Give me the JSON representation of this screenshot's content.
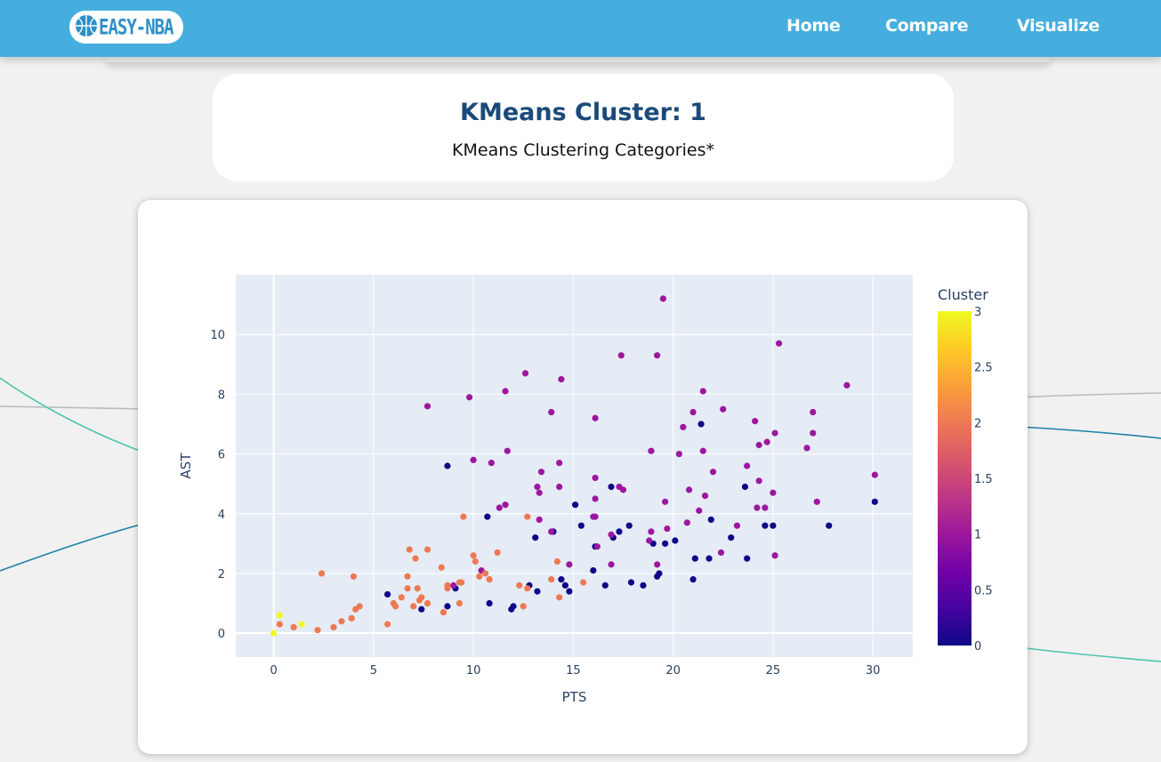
{
  "navbar": {
    "logo_text": "EASY-NBA",
    "links": [
      {
        "label": "Home"
      },
      {
        "label": "Compare"
      },
      {
        "label": "Visualize"
      }
    ]
  },
  "header": {
    "title": "KMeans Cluster: 1",
    "subtitle": "KMeans Clustering Categories*"
  },
  "chart_data": {
    "type": "scatter",
    "xlabel": "PTS",
    "ylabel": "AST",
    "xlim": [
      -1.9,
      32
    ],
    "ylim": [
      -0.8,
      12
    ],
    "xticks": [
      0,
      5,
      10,
      15,
      20,
      25,
      30
    ],
    "yticks": [
      0,
      2,
      4,
      6,
      8,
      10
    ],
    "grid": true,
    "colorbar": {
      "title": "Cluster",
      "range": [
        0,
        3
      ],
      "ticks": [
        "0",
        "0.5",
        "1",
        "1.5",
        "2",
        "2.5",
        "3"
      ],
      "colorscale": [
        "#0d0887",
        "#46039f",
        "#7201a8",
        "#9c179e",
        "#bd3786",
        "#d8576b",
        "#ed7953",
        "#fb9f3a",
        "#fdca26",
        "#f0f921"
      ]
    },
    "series": [
      {
        "cluster": 0,
        "points": [
          [
            8.7,
            5.6
          ],
          [
            10.7,
            3.9
          ],
          [
            5.7,
            1.3
          ],
          [
            7.4,
            0.8
          ],
          [
            8.7,
            0.9
          ],
          [
            9.1,
            1.5
          ],
          [
            10.8,
            1.0
          ],
          [
            11.9,
            0.8
          ],
          [
            12.0,
            0.9
          ],
          [
            12.8,
            1.6
          ],
          [
            13.2,
            1.4
          ],
          [
            13.1,
            3.2
          ],
          [
            14.0,
            3.4
          ],
          [
            14.4,
            1.8
          ],
          [
            14.6,
            1.6
          ],
          [
            14.8,
            1.4
          ],
          [
            15.1,
            4.3
          ],
          [
            15.4,
            3.6
          ],
          [
            16.0,
            2.1
          ],
          [
            16.1,
            2.9
          ],
          [
            16.6,
            1.6
          ],
          [
            16.9,
            4.9
          ],
          [
            17.0,
            3.2
          ],
          [
            17.3,
            3.4
          ],
          [
            17.8,
            3.6
          ],
          [
            17.9,
            1.7
          ],
          [
            18.5,
            1.6
          ],
          [
            19.0,
            3.0
          ],
          [
            19.2,
            1.9
          ],
          [
            19.3,
            2.0
          ],
          [
            19.6,
            3.0
          ],
          [
            20.1,
            3.1
          ],
          [
            21.0,
            1.8
          ],
          [
            21.1,
            2.5
          ],
          [
            21.4,
            7.0
          ],
          [
            21.8,
            2.5
          ],
          [
            21.9,
            3.8
          ],
          [
            22.9,
            3.2
          ],
          [
            23.6,
            4.9
          ],
          [
            23.7,
            2.5
          ],
          [
            24.6,
            3.6
          ],
          [
            25.0,
            3.6
          ],
          [
            27.8,
            3.6
          ],
          [
            30.1,
            4.4
          ]
        ]
      },
      {
        "cluster": 1,
        "points": [
          [
            7.7,
            7.6
          ],
          [
            9.8,
            7.9
          ],
          [
            10.0,
            5.8
          ],
          [
            10.9,
            5.7
          ],
          [
            11.3,
            4.2
          ],
          [
            11.6,
            4.3
          ],
          [
            11.7,
            6.1
          ],
          [
            11.6,
            8.1
          ],
          [
            12.6,
            8.7
          ],
          [
            13.2,
            4.9
          ],
          [
            13.3,
            4.7
          ],
          [
            13.4,
            5.4
          ],
          [
            13.3,
            3.8
          ],
          [
            13.9,
            7.4
          ],
          [
            13.9,
            3.4
          ],
          [
            14.3,
            4.9
          ],
          [
            14.3,
            5.7
          ],
          [
            14.4,
            8.5
          ],
          [
            14.8,
            2.3
          ],
          [
            16.0,
            3.9
          ],
          [
            16.1,
            4.5
          ],
          [
            16.1,
            5.2
          ],
          [
            16.2,
            2.9
          ],
          [
            16.1,
            7.2
          ],
          [
            16.9,
            2.3
          ],
          [
            16.9,
            3.3
          ],
          [
            17.3,
            4.9
          ],
          [
            17.4,
            9.3
          ],
          [
            17.5,
            4.8
          ],
          [
            18.8,
            3.1
          ],
          [
            18.9,
            6.1
          ],
          [
            18.9,
            3.4
          ],
          [
            19.2,
            2.3
          ],
          [
            19.2,
            9.3
          ],
          [
            19.5,
            11.2
          ],
          [
            19.6,
            4.4
          ],
          [
            19.7,
            3.5
          ],
          [
            20.3,
            6.0
          ],
          [
            20.5,
            6.9
          ],
          [
            20.7,
            3.7
          ],
          [
            20.8,
            4.8
          ],
          [
            21.0,
            7.4
          ],
          [
            21.5,
            8.1
          ],
          [
            21.6,
            4.6
          ],
          [
            21.5,
            6.1
          ],
          [
            22.0,
            5.4
          ],
          [
            22.4,
            2.7
          ],
          [
            22.5,
            7.5
          ],
          [
            23.2,
            3.6
          ],
          [
            23.7,
            5.6
          ],
          [
            24.1,
            7.1
          ],
          [
            24.2,
            4.2
          ],
          [
            24.3,
            6.3
          ],
          [
            24.3,
            5.1
          ],
          [
            24.6,
            4.2
          ],
          [
            24.7,
            6.4
          ],
          [
            25.0,
            4.7
          ],
          [
            25.1,
            6.7
          ],
          [
            25.1,
            2.6
          ],
          [
            25.3,
            9.7
          ],
          [
            26.7,
            6.2
          ],
          [
            27.0,
            6.7
          ],
          [
            27.0,
            7.4
          ],
          [
            27.2,
            4.4
          ],
          [
            28.7,
            8.3
          ],
          [
            30.1,
            5.3
          ],
          [
            21.3,
            4.1
          ],
          [
            9.0,
            1.6
          ],
          [
            10.4,
            2.1
          ],
          [
            16.1,
            3.9
          ]
        ]
      },
      {
        "cluster": 2,
        "points": [
          [
            0.3,
            0.3
          ],
          [
            1.0,
            0.2
          ],
          [
            2.2,
            0.1
          ],
          [
            2.4,
            2.0
          ],
          [
            3.0,
            0.2
          ],
          [
            3.4,
            0.4
          ],
          [
            3.9,
            0.5
          ],
          [
            4.0,
            1.9
          ],
          [
            4.1,
            0.8
          ],
          [
            4.3,
            0.9
          ],
          [
            5.7,
            0.3
          ],
          [
            6.0,
            1.0
          ],
          [
            6.1,
            0.9
          ],
          [
            6.4,
            1.2
          ],
          [
            6.7,
            1.5
          ],
          [
            6.8,
            2.8
          ],
          [
            7.0,
            0.9
          ],
          [
            7.1,
            2.5
          ],
          [
            7.2,
            1.5
          ],
          [
            7.3,
            1.1
          ],
          [
            7.4,
            1.2
          ],
          [
            7.7,
            1.0
          ],
          [
            7.7,
            2.8
          ],
          [
            8.4,
            2.2
          ],
          [
            8.5,
            0.7
          ],
          [
            8.7,
            1.6
          ],
          [
            8.7,
            1.5
          ],
          [
            9.3,
            1.0
          ],
          [
            9.3,
            1.7
          ],
          [
            9.4,
            1.7
          ],
          [
            9.5,
            3.9
          ],
          [
            10.0,
            2.6
          ],
          [
            10.1,
            2.4
          ],
          [
            10.3,
            1.9
          ],
          [
            10.6,
            2.0
          ],
          [
            10.8,
            1.8
          ],
          [
            11.2,
            2.7
          ],
          [
            12.3,
            1.6
          ],
          [
            12.5,
            0.9
          ],
          [
            12.7,
            1.5
          ],
          [
            12.7,
            3.9
          ],
          [
            13.9,
            1.8
          ],
          [
            14.2,
            2.4
          ],
          [
            14.3,
            1.2
          ],
          [
            15.5,
            1.7
          ],
          [
            6.7,
            1.9
          ]
        ]
      },
      {
        "cluster": 3,
        "points": [
          [
            0.0,
            0.0
          ],
          [
            0.3,
            0.6
          ],
          [
            1.4,
            0.3
          ]
        ]
      }
    ]
  }
}
